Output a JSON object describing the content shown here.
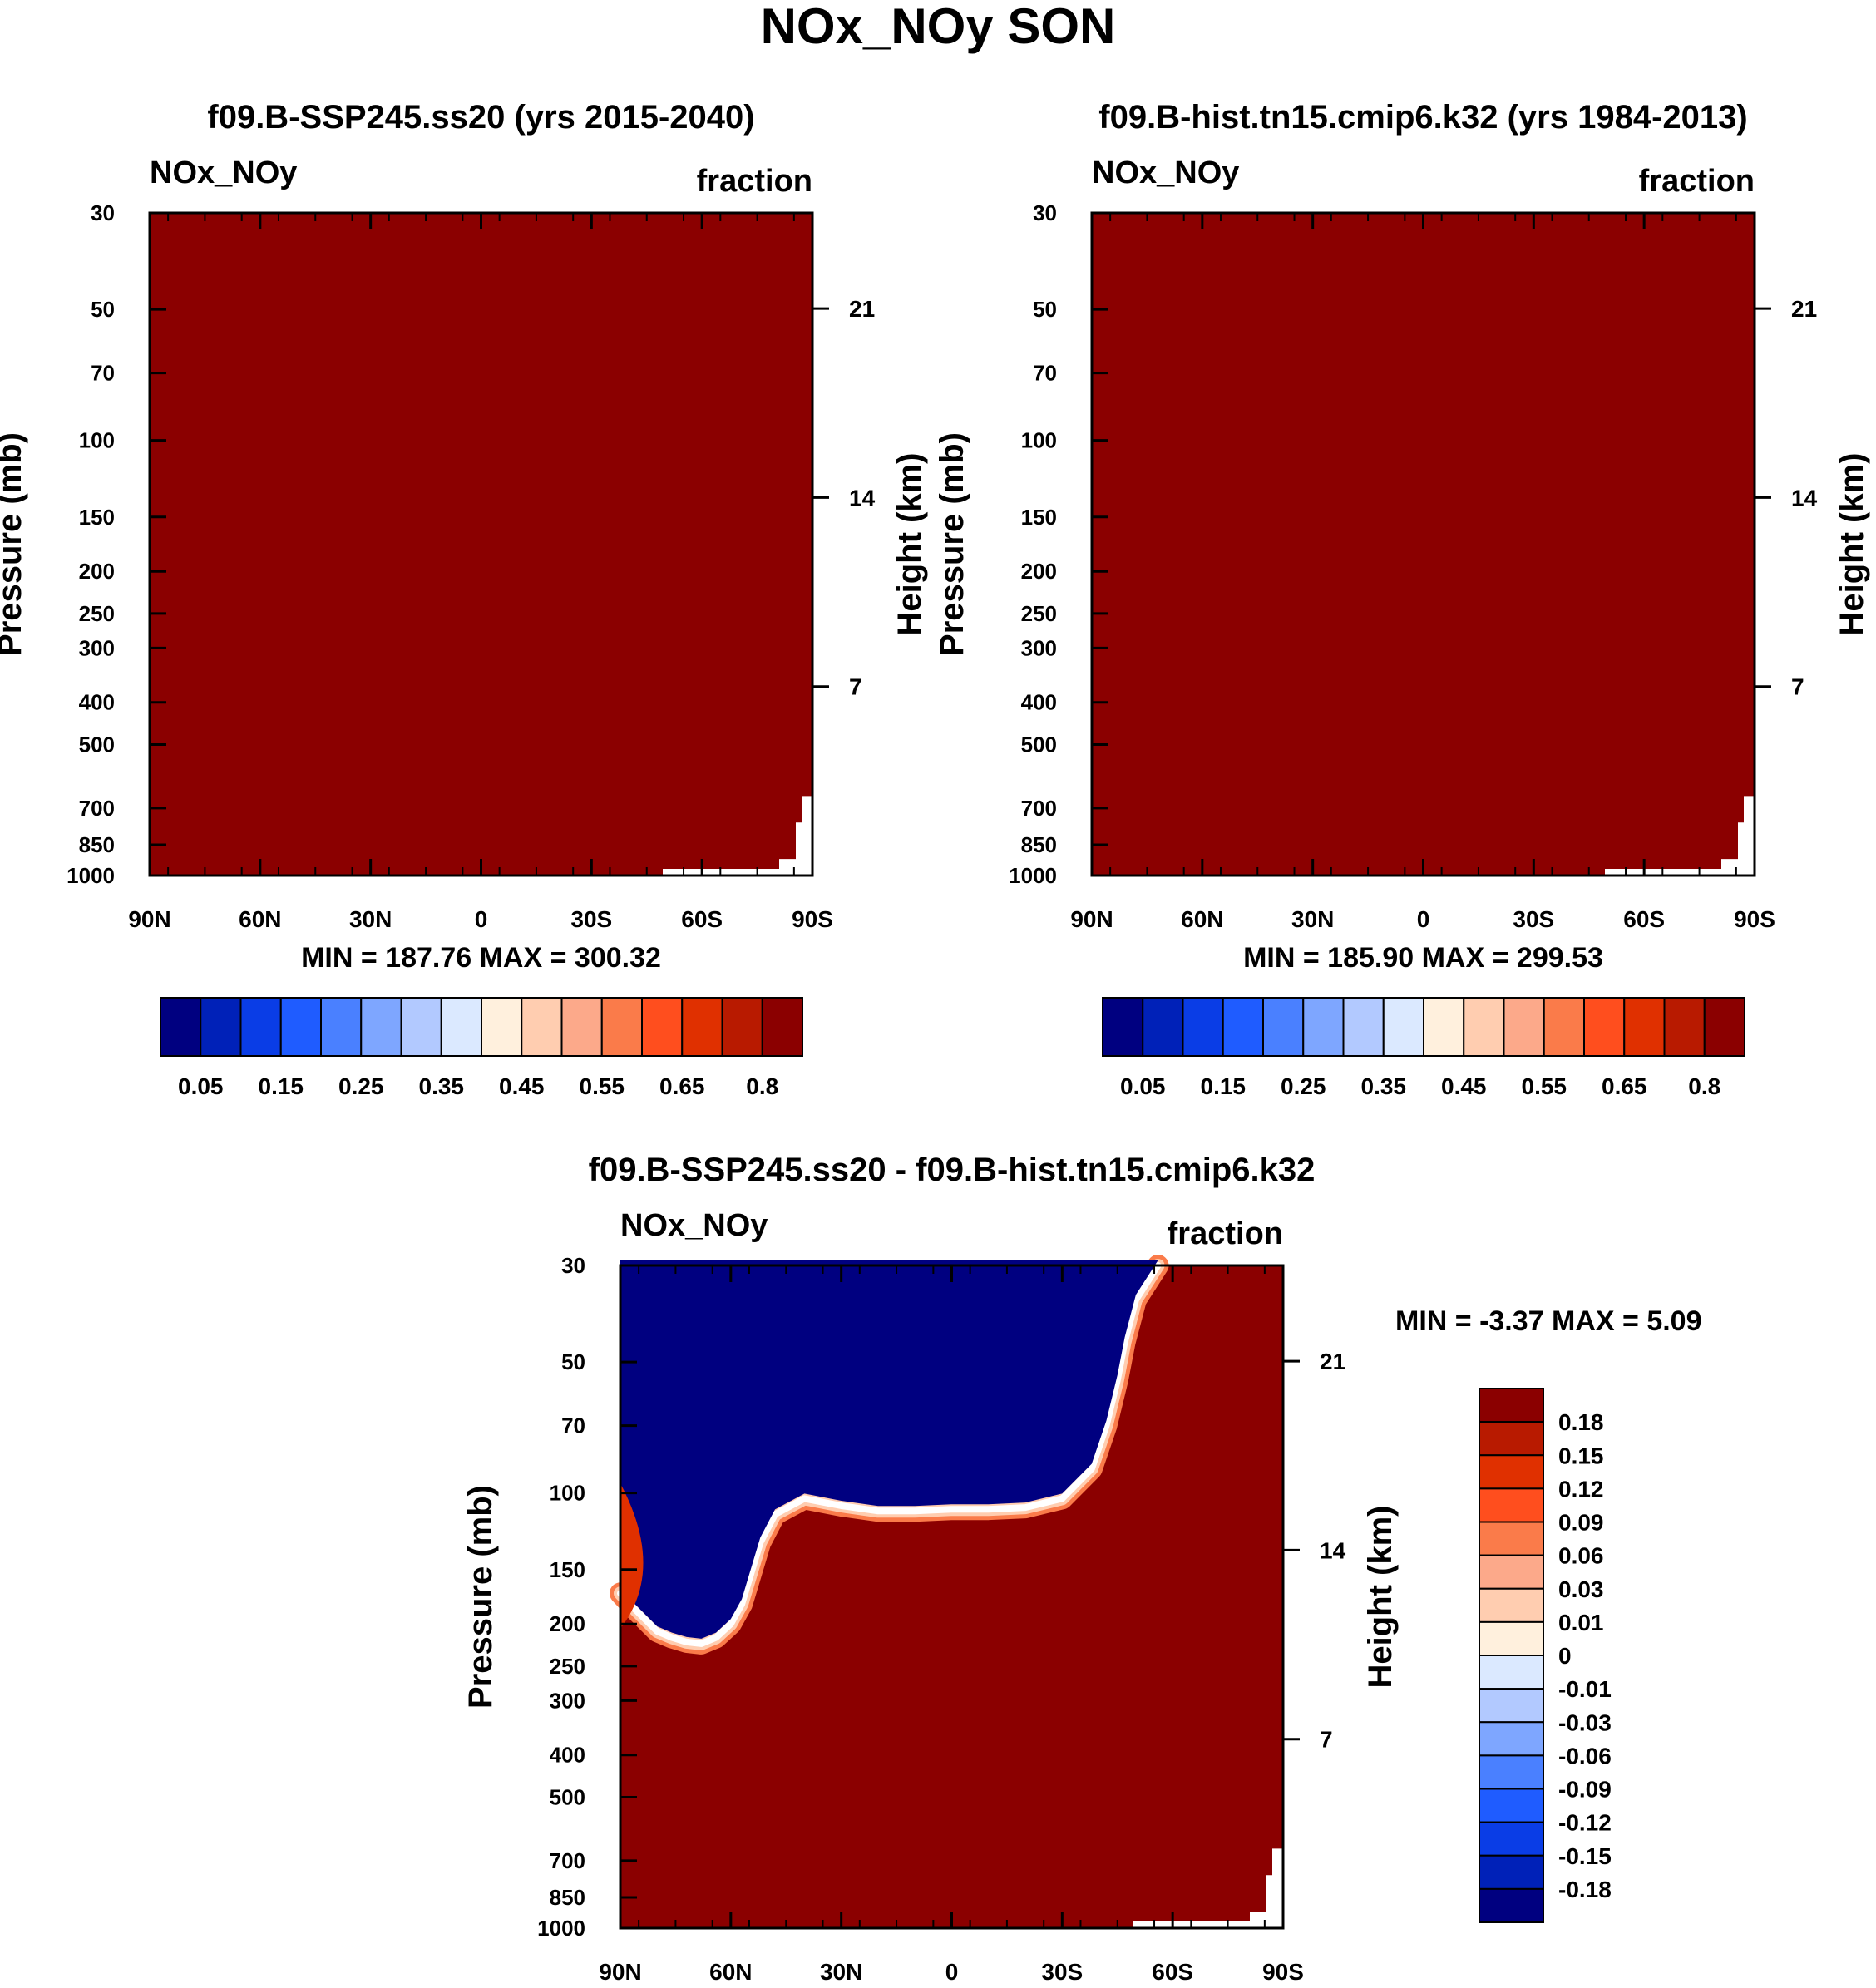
{
  "title": "NOx_NOy SON",
  "colors": {
    "abs": [
      "#000080",
      "#0021b8",
      "#0a3de6",
      "#1f5cff",
      "#4a80ff",
      "#7ea6ff",
      "#b2c9ff",
      "#dbe9ff",
      "#fff0dd",
      "#ffcdb0",
      "#fca98a",
      "#fa7b4a",
      "#ff4e1e",
      "#e03000",
      "#b81a00",
      "#8b0000"
    ],
    "diff": [
      "#000080",
      "#0021b8",
      "#0a3de6",
      "#1f5cff",
      "#4a80ff",
      "#7ea6ff",
      "#b2c9ff",
      "#dbe9ff",
      "#fff0dd",
      "#ffcdb0",
      "#fca98a",
      "#fa7b4a",
      "#ff4e1e",
      "#e03000",
      "#b81a00",
      "#8b0000"
    ],
    "fill": "#8b0000",
    "negative": "#000080"
  },
  "chart_data": [
    {
      "type": "heatmap",
      "title": "f09.B-SSP245.ss20 (yrs 2015-2040)",
      "variable_label": "NOx_NOy",
      "units_label": "fraction",
      "ylabel": "Pressure (mb)",
      "ylabel_right": "Height (km)",
      "x_ticks": [
        "90N",
        "60N",
        "30N",
        "0",
        "30S",
        "60S",
        "90S"
      ],
      "y_ticks": [
        "30",
        "50",
        "70",
        "100",
        "150",
        "200",
        "250",
        "300",
        "400",
        "500",
        "700",
        "850",
        "1000"
      ],
      "y_right_ticks": [
        "21",
        "14",
        "7"
      ],
      "stats": "MIN = 187.76  MAX = 300.32",
      "colorbar_labels": [
        "0.05",
        "0.15",
        "0.25",
        "0.35",
        "0.45",
        "0.55",
        "0.65",
        "0.8"
      ],
      "field": "uniform value above top contour level (> 0.8) with missing values near surface at southern high latitudes"
    },
    {
      "type": "heatmap",
      "title": "f09.B-hist.tn15.cmip6.k32 (yrs 1984-2013)",
      "variable_label": "NOx_NOy",
      "units_label": "fraction",
      "ylabel": "Pressure (mb)",
      "ylabel_right": "Height (km)",
      "x_ticks": [
        "90N",
        "60N",
        "30N",
        "0",
        "30S",
        "60S",
        "90S"
      ],
      "y_ticks": [
        "30",
        "50",
        "70",
        "100",
        "150",
        "200",
        "250",
        "300",
        "400",
        "500",
        "700",
        "850",
        "1000"
      ],
      "y_right_ticks": [
        "21",
        "14",
        "7"
      ],
      "stats": "MIN = 185.90  MAX = 299.53",
      "colorbar_labels": [
        "0.05",
        "0.15",
        "0.25",
        "0.35",
        "0.45",
        "0.55",
        "0.65",
        "0.8"
      ],
      "field": "uniform value above top contour level (> 0.8) with missing values near surface at southern high latitudes"
    },
    {
      "type": "heatmap",
      "title": "f09.B-SSP245.ss20 - f09.B-hist.tn15.cmip6.k32",
      "variable_label": "NOx_NOy",
      "units_label": "fraction",
      "ylabel": "Pressure (mb)",
      "ylabel_right": "Height (km)",
      "x_ticks": [
        "90N",
        "60N",
        "30N",
        "0",
        "30S",
        "60S",
        "90S"
      ],
      "y_ticks": [
        "30",
        "50",
        "70",
        "100",
        "150",
        "200",
        "250",
        "300",
        "400",
        "500",
        "700",
        "850",
        "1000"
      ],
      "y_right_ticks": [
        "21",
        "14",
        "7"
      ],
      "stats": "MIN =  -3.37  MAX =   5.09",
      "colorbar_labels": [
        "0.18",
        "0.15",
        "0.12",
        "0.09",
        "0.06",
        "0.03",
        "0.01",
        "0",
        "-0.01",
        "-0.03",
        "-0.06",
        "-0.09",
        "-0.12",
        "-0.15",
        "-0.18"
      ],
      "boundary": {
        "description": "zero-difference contour (negative above, positive below)",
        "lat": [
          90,
          86,
          80,
          76,
          72,
          68,
          64,
          60,
          57,
          52,
          48,
          40,
          30,
          20,
          10,
          0,
          -10,
          -20,
          -30,
          -38,
          -42,
          -45,
          -47,
          -50,
          -56
        ],
        "pressure_mb": [
          170,
          185,
          208,
          215,
          220,
          222,
          215,
          200,
          180,
          130,
          112,
          103,
          107,
          110,
          110,
          109,
          109,
          108,
          103,
          88,
          70,
          55,
          45,
          36,
          30
        ]
      }
    }
  ]
}
